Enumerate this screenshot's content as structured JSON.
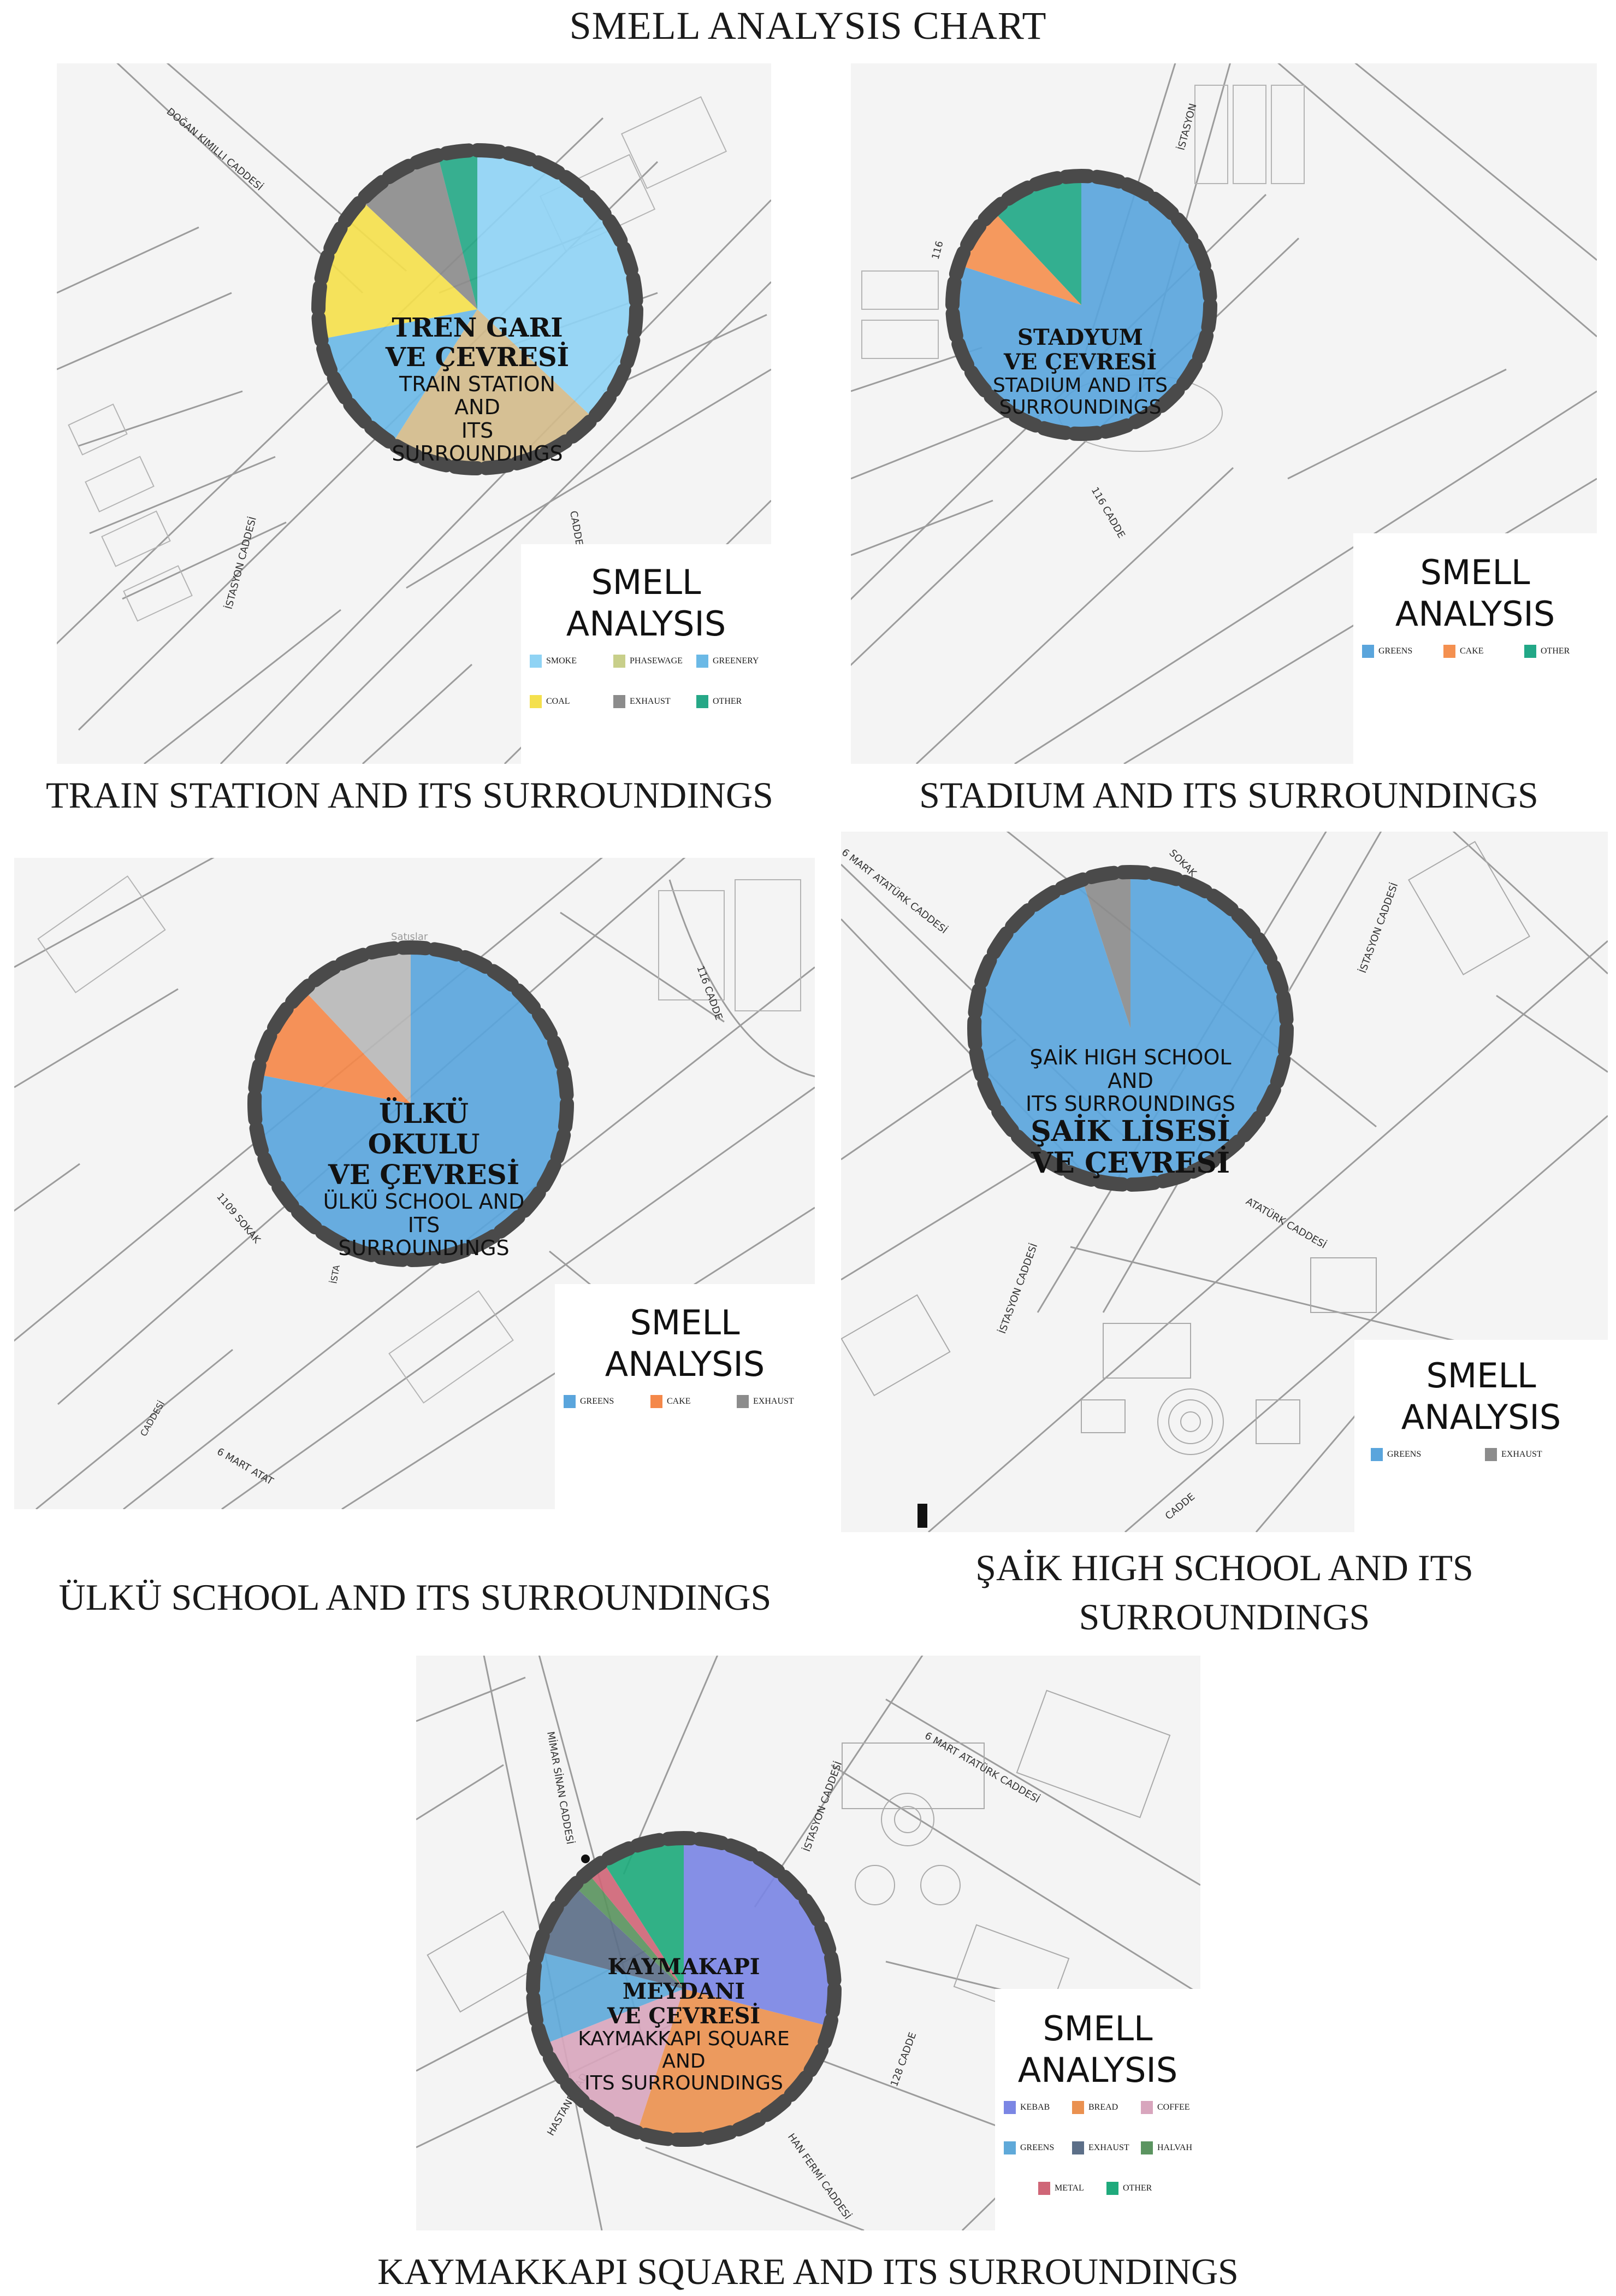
{
  "title": "SMELL ANALYSIS CHART",
  "chart_data": [
    {
      "type": "pie",
      "caption": "TRAIN STATION AND ITS SURROUNDINGS",
      "pie_label_tr": [
        "TREN GARI",
        "VE ÇEVRESİ"
      ],
      "pie_label_en": [
        "TRAIN STATION AND",
        "ITS SURROUNDINGS"
      ],
      "legend_title": [
        "SMELL",
        "ANALYSIS"
      ],
      "legend_rows": [
        [
          "SMOKE",
          "PHASEWAGE",
          "GREENERY"
        ],
        [
          "COAL",
          "EXHAUST",
          "OTHER"
        ]
      ],
      "slices": [
        {
          "label": "SMOKE",
          "value": 37,
          "color": "#8fd3f4"
        },
        {
          "label": "PHASEWAGE",
          "value": 22,
          "color": "#d3bb8b"
        },
        {
          "label": "GREENERY",
          "value": 13,
          "color": "#6bb9e6"
        },
        {
          "label": "COAL",
          "value": 15,
          "color": "#f4e04d"
        },
        {
          "label": "EXHAUST",
          "value": 9,
          "color": "#8c8c8c"
        },
        {
          "label": "OTHER",
          "value": 4,
          "color": "#26a887"
        }
      ],
      "legend_colors": {
        "SMOKE": "#8fd3f4",
        "PHASEWAGE": "#c8cf8a",
        "GREENERY": "#6bb9e6",
        "COAL": "#f4e04d",
        "EXHAUST": "#8c8c8c",
        "OTHER": "#26a887"
      }
    },
    {
      "type": "pie",
      "caption": "STADIUM AND ITS SURROUNDINGS",
      "pie_label_tr": [
        "STADYUM",
        "VE ÇEVRESİ"
      ],
      "pie_label_en": [
        "STADIUM AND ITS",
        "SURROUNDINGS"
      ],
      "legend_title": [
        "SMELL",
        "ANALYSIS"
      ],
      "legend_rows": [
        [
          "GREENS",
          "CAKE",
          "OTHER"
        ]
      ],
      "slices": [
        {
          "label": "GREENS",
          "value": 80,
          "color": "#5aa5dc"
        },
        {
          "label": "CAKE",
          "value": 8,
          "color": "#f49050"
        },
        {
          "label": "OTHER",
          "value": 12,
          "color": "#22a887"
        }
      ],
      "legend_colors": {
        "GREENS": "#5aa5dc",
        "CAKE": "#f49050",
        "OTHER": "#22a887"
      }
    },
    {
      "type": "pie",
      "caption": "ÜLKÜ SCHOOL AND ITS SURROUNDINGS",
      "pie_label_tr": [
        "ÜLKÜ OKULU",
        "VE ÇEVRESİ"
      ],
      "pie_label_en": [
        "ÜLKÜ SCHOOL AND",
        "ITS SURROUNDINGS"
      ],
      "legend_title": [
        "SMELL",
        "ANALYSIS"
      ],
      "legend_rows": [
        [
          "GREENS",
          "CAKE",
          "EXHAUST"
        ]
      ],
      "slices": [
        {
          "label": "GREENS",
          "value": 78,
          "color": "#5aa5dc"
        },
        {
          "label": "CAKE",
          "value": 10,
          "color": "#f4884a"
        },
        {
          "label": "EXHAUST",
          "value": 12,
          "color": "#b8b8b8"
        }
      ],
      "legend_colors": {
        "GREENS": "#5aa5dc",
        "CAKE": "#f4884a",
        "EXHAUST": "#8c8c8c"
      }
    },
    {
      "type": "pie",
      "caption": "ŞAİK HIGH SCHOOL AND ITS SURROUNDINGS",
      "caption_lines": [
        "ŞAİK HIGH SCHOOL AND ITS",
        "SURROUNDINGS"
      ],
      "pie_label_en": [
        "ŞAİK HIGH SCHOOL AND",
        "ITS SURROUNDINGS"
      ],
      "pie_label_tr": [
        "ŞAİK LİSESİ",
        "VE ÇEVRESİ"
      ],
      "legend_title": [
        "SMELL",
        "ANALYSIS"
      ],
      "legend_rows": [
        [
          "GREENS",
          "EXHAUST"
        ]
      ],
      "slices": [
        {
          "label": "GREENS",
          "value": 95,
          "color": "#5aa5dc"
        },
        {
          "label": "EXHAUST",
          "value": 5,
          "color": "#8c8c8c"
        }
      ],
      "legend_colors": {
        "GREENS": "#5aa5dc",
        "EXHAUST": "#8c8c8c"
      }
    },
    {
      "type": "pie",
      "caption": "KAYMAKKAPI SQUARE AND ITS SURROUNDINGS",
      "pie_label_tr": [
        "KAYMAKAPI",
        "MEYDANI",
        "VE ÇEVRESİ"
      ],
      "pie_label_en": [
        "KAYMAKKAPI SQUARE AND",
        "ITS SURROUNDINGS"
      ],
      "legend_title": [
        "SMELL",
        "ANALYSIS"
      ],
      "legend_rows": [
        [
          "KEBAB",
          "BREAD",
          "COFFEE"
        ],
        [
          "GREENS",
          "EXHAUST",
          "HALVAH"
        ],
        [
          "METAL",
          "OTHER"
        ]
      ],
      "slices": [
        {
          "label": "KEBAB",
          "value": 29,
          "color": "#7b86e4"
        },
        {
          "label": "BREAD",
          "value": 26,
          "color": "#ea9150"
        },
        {
          "label": "COFFEE",
          "value": 14,
          "color": "#d8a6bd"
        },
        {
          "label": "GREENS",
          "value": 10,
          "color": "#5fa9d9"
        },
        {
          "label": "EXHAUST",
          "value": 8,
          "color": "#5c6f88"
        },
        {
          "label": "HALVAH",
          "value": 2,
          "color": "#5b9460"
        },
        {
          "label": "METAL",
          "value": 2,
          "color": "#cf6677"
        },
        {
          "label": "OTHER",
          "value": 9,
          "color": "#1faa7c"
        }
      ],
      "legend_colors": {
        "KEBAB": "#7b86e4",
        "BREAD": "#ea9150",
        "COFFEE": "#d8a6bd",
        "GREENS": "#5fa9d9",
        "EXHAUST": "#5c6f88",
        "HALVAH": "#5b9460",
        "METAL": "#cf6677",
        "OTHER": "#1faa7c"
      }
    }
  ],
  "street_labels": {
    "p1": [
      "DOĞAN KIMILLI CADDESİ",
      "İSTASYON CADDESİ",
      "CADDESİ"
    ],
    "p2": [
      "İSTASYON",
      "116",
      "116 CADDE"
    ],
    "p3": [
      "1109 SOKAK",
      "116 CADDE",
      "6 MART ATAT",
      "İSTA",
      "CADDESİ",
      "Satışlar"
    ],
    "p4": [
      "SOKAK",
      "6 MART ATATÜRK CADDESİ",
      "İSTASYON CADDESİ",
      "İSTASYON CADDESİ",
      "ATATÜRK CADDESİ",
      "CADDE"
    ],
    "p5": [
      "MİMAR SİNAN CADDESİ",
      "İSTASYON CADDESİ",
      "6 MART ATATÜRK CADDESİ",
      "HASTANE CAD",
      "128 CADDE",
      "HAN FERMİ CADDESİ"
    ]
  }
}
